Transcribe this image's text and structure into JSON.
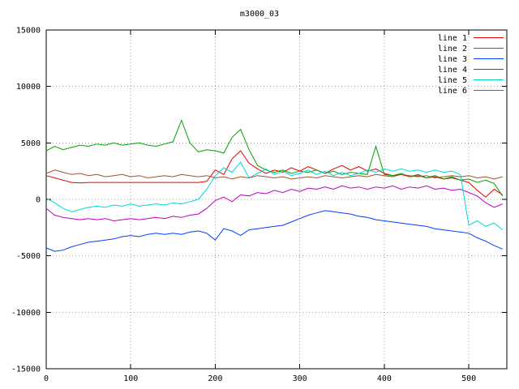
{
  "title": "m3000_03",
  "colors": {
    "background": "#ffffff",
    "border": "#000000",
    "grid": "#9a9a9a",
    "text": "#000000"
  },
  "chart_data": {
    "type": "line",
    "title": "m3000_03",
    "xlabel": "",
    "ylabel": "",
    "xlim": [
      0,
      545
    ],
    "ylim": [
      -15000,
      15000
    ],
    "x_ticks": [
      0,
      100,
      200,
      300,
      400,
      500
    ],
    "y_ticks": [
      -15000,
      -10000,
      -5000,
      0,
      5000,
      10000,
      15000
    ],
    "grid": true,
    "grid_style": "dotted",
    "legend_position": "top-right-inside",
    "x": [
      0,
      10,
      20,
      30,
      40,
      50,
      60,
      70,
      80,
      90,
      100,
      110,
      120,
      130,
      140,
      150,
      160,
      170,
      180,
      190,
      200,
      210,
      220,
      230,
      240,
      250,
      260,
      270,
      280,
      290,
      300,
      310,
      320,
      330,
      340,
      350,
      360,
      370,
      380,
      390,
      400,
      410,
      420,
      430,
      440,
      450,
      460,
      470,
      480,
      490,
      500,
      510,
      520,
      530,
      540
    ],
    "series": [
      {
        "name": "line 1",
        "color": "#e60000",
        "values": [
          2100,
          1900,
          1700,
          1500,
          1450,
          1500,
          1500,
          1500,
          1500,
          1500,
          1500,
          1500,
          1500,
          1500,
          1500,
          1500,
          1500,
          1500,
          1500,
          1600,
          2600,
          2200,
          3600,
          4300,
          3200,
          2700,
          2300,
          2600,
          2400,
          2800,
          2500,
          2900,
          2600,
          2300,
          2700,
          3000,
          2600,
          2900,
          2500,
          2700,
          2300,
          2100,
          2200,
          2000,
          2100,
          1900,
          2000,
          1800,
          1900,
          1700,
          1500,
          800,
          200,
          900,
          400
        ]
      },
      {
        "name": "line 2",
        "color": "#00a000",
        "values": [
          4300,
          4700,
          4400,
          4600,
          4800,
          4700,
          4900,
          4800,
          5000,
          4800,
          4900,
          5000,
          4800,
          4700,
          4900,
          5100,
          7000,
          5000,
          4200,
          4400,
          4300,
          4100,
          5500,
          6200,
          4400,
          3000,
          2600,
          2400,
          2600,
          2300,
          2500,
          2400,
          2600,
          2300,
          2500,
          2200,
          2400,
          2300,
          2200,
          4700,
          2200,
          2100,
          2300,
          2000,
          2200,
          1900,
          2100,
          1800,
          2000,
          1700,
          1800,
          1500,
          1700,
          1400,
          300
        ]
      },
      {
        "name": "line 3",
        "color": "#0040ff",
        "values": [
          -4300,
          -4600,
          -4500,
          -4200,
          -4000,
          -3800,
          -3700,
          -3600,
          -3500,
          -3300,
          -3200,
          -3300,
          -3100,
          -3000,
          -3100,
          -3000,
          -3100,
          -2900,
          -2800,
          -3000,
          -3600,
          -2600,
          -2800,
          -3200,
          -2700,
          -2600,
          -2500,
          -2400,
          -2300,
          -2000,
          -1700,
          -1400,
          -1200,
          -1000,
          -1100,
          -1200,
          -1300,
          -1500,
          -1600,
          -1800,
          -1900,
          -2000,
          -2100,
          -2200,
          -2300,
          -2400,
          -2600,
          -2700,
          -2800,
          -2900,
          -3000,
          -3400,
          -3700,
          -4100,
          -4400
        ]
      },
      {
        "name": "line 4",
        "color": "#bf00bf",
        "values": [
          -800,
          -1400,
          -1600,
          -1700,
          -1800,
          -1700,
          -1800,
          -1700,
          -1900,
          -1800,
          -1700,
          -1800,
          -1700,
          -1600,
          -1700,
          -1500,
          -1600,
          -1400,
          -1300,
          -800,
          -100,
          200,
          -200,
          400,
          300,
          600,
          500,
          800,
          600,
          900,
          700,
          1000,
          900,
          1100,
          900,
          1200,
          1000,
          1100,
          900,
          1100,
          1000,
          1200,
          900,
          1100,
          1000,
          1200,
          900,
          1000,
          800,
          900,
          600,
          300,
          -300,
          -700,
          -400
        ]
      },
      {
        "name": "line 5",
        "color": "#00d8d8",
        "values": [
          100,
          -300,
          -800,
          -1100,
          -900,
          -700,
          -600,
          -700,
          -500,
          -600,
          -400,
          -600,
          -500,
          -400,
          -500,
          -300,
          -400,
          -200,
          0,
          900,
          2100,
          2800,
          2400,
          3300,
          1900,
          2300,
          2700,
          2200,
          2500,
          2100,
          2300,
          2600,
          2200,
          2500,
          2100,
          2400,
          2100,
          2300,
          2600,
          2400,
          2700,
          2500,
          2700,
          2500,
          2600,
          2400,
          2600,
          2400,
          2500,
          2200,
          -2300,
          -1900,
          -2400,
          -2100,
          -2700
        ]
      },
      {
        "name": "line 6",
        "color": "#a0522d",
        "values": [
          2300,
          2600,
          2400,
          2200,
          2300,
          2100,
          2200,
          2000,
          2100,
          2200,
          2000,
          2100,
          1900,
          2000,
          2100,
          2000,
          2200,
          2100,
          2000,
          2100,
          1900,
          2000,
          1800,
          2000,
          1900,
          2100,
          2000,
          1900,
          2000,
          1800,
          1900,
          2000,
          1900,
          2100,
          2000,
          1900,
          2000,
          2100,
          2000,
          2200,
          2100,
          2000,
          2200,
          2100,
          2000,
          2100,
          1900,
          2000,
          2100,
          2000,
          2100,
          1900,
          2000,
          1800,
          2000
        ]
      }
    ]
  }
}
